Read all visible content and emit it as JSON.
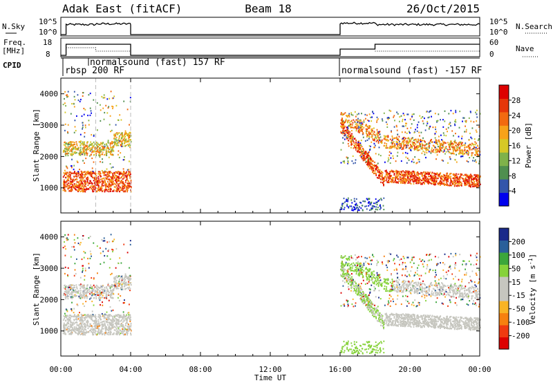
{
  "header": {
    "radar": "Adak East (fitACF)",
    "beam": "Beam 18",
    "date": "26/Oct/2015"
  },
  "panels": {
    "nsky_label": "N.Sky",
    "nsky_ticks": [
      "10^5",
      "10^0"
    ],
    "nsearch_label": "N.Search",
    "nsearch_ticks": [
      "10^5",
      "10^0"
    ],
    "freq_label_1": "Freq.",
    "freq_label_2": "[MHz]",
    "freq_ticks": [
      "18",
      "8"
    ],
    "nave_label": "Nave",
    "nave_ticks": [
      "60",
      "0"
    ],
    "cpid_label": "CPID",
    "cpid_segments": [
      "rbsp 200 RF",
      "normalsound (fast) 157 RF",
      "normalsound (fast) -157 RF"
    ]
  },
  "colors": {
    "power_scale": [
      "#0000ee",
      "#3355aa",
      "#4f8f4f",
      "#7fb24a",
      "#d6c826",
      "#f7a21a",
      "#f26a10",
      "#e5360a",
      "#dd0000"
    ],
    "velocity_scale": [
      "#dd0000",
      "#f03a10",
      "#f7800f",
      "#f9b424",
      "#c6c6bf",
      "#c6c6bf",
      "#86d23a",
      "#3ba63b",
      "#2a5f9a",
      "#1a2a8a"
    ],
    "ground_scatter": "#c6c6bf"
  },
  "chart_data": {
    "type": "heatmap",
    "x_ticks": [
      "00:00",
      "04:00",
      "08:00",
      "12:00",
      "16:00",
      "20:00",
      "00:00"
    ],
    "xlabel": "Time UT",
    "ylabel": "Slant Range [km]",
    "y_ticks": [
      "1000",
      "2000",
      "3000",
      "4000"
    ],
    "ylim": [
      200,
      4500
    ],
    "xlim_hours": [
      0,
      24
    ],
    "observation_intervals_hours": [
      [
        0,
        4
      ],
      [
        16,
        24
      ]
    ],
    "power": {
      "colorbar_label": "Power [dB]",
      "colorbar_ticks": [
        "4",
        "8",
        "12",
        "16",
        "20",
        "24",
        "28"
      ],
      "range_db": [
        0,
        32
      ]
    },
    "velocity": {
      "colorbar_label": "Velocity [m s",
      "colorbar_label_sup": "-1",
      "colorbar_label_end": "]",
      "colorbar_ticks": [
        "200",
        "100",
        "50",
        "15",
        "-15",
        "-50",
        "-100",
        "-200"
      ]
    }
  }
}
